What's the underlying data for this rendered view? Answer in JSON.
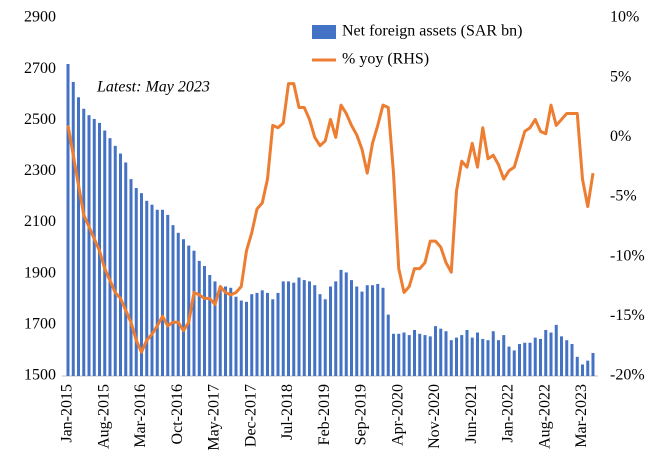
{
  "chart_data": {
    "type": "bar_line",
    "annotation": "Latest: May 2023",
    "categories": [
      "Jan-2015",
      null,
      null,
      null,
      null,
      null,
      null,
      "Aug-2015",
      null,
      null,
      null,
      null,
      null,
      null,
      "Mar-2016",
      null,
      null,
      null,
      null,
      null,
      null,
      "Oct-2016",
      null,
      null,
      null,
      null,
      null,
      null,
      "May-2017",
      null,
      null,
      null,
      null,
      null,
      null,
      "Dec-2017",
      null,
      null,
      null,
      null,
      null,
      null,
      "Jul-2018",
      null,
      null,
      null,
      null,
      null,
      null,
      "Feb-2019",
      null,
      null,
      null,
      null,
      null,
      null,
      "Sep-2019",
      null,
      null,
      null,
      null,
      null,
      null,
      "Apr-2020",
      null,
      null,
      null,
      null,
      null,
      null,
      "Nov-2020",
      null,
      null,
      null,
      null,
      null,
      null,
      "Jun-2021",
      null,
      null,
      null,
      null,
      null,
      null,
      "Jan-2022",
      null,
      null,
      null,
      null,
      null,
      null,
      "Aug-2022",
      null,
      null,
      null,
      null,
      null,
      null,
      "Mar-2023",
      null,
      null
    ],
    "series": [
      {
        "name": "Net foreign assets (SAR bn)",
        "type": "bar",
        "color": "#4472c4",
        "values": [
          2720,
          2650,
          2590,
          2545,
          2520,
          2505,
          2490,
          2460,
          2430,
          2400,
          2370,
          2335,
          2270,
          2235,
          2215,
          2185,
          2170,
          2150,
          2150,
          2130,
          2090,
          2060,
          2035,
          2010,
          1990,
          1950,
          1930,
          1895,
          1870,
          1850,
          1850,
          1845,
          1810,
          1795,
          1790,
          1820,
          1825,
          1835,
          1825,
          1800,
          1825,
          1870,
          1870,
          1865,
          1885,
          1875,
          1870,
          1855,
          1820,
          1800,
          1850,
          1870,
          1915,
          1905,
          1875,
          1850,
          1830,
          1855,
          1855,
          1860,
          1845,
          1740,
          1665,
          1665,
          1670,
          1660,
          1680,
          1665,
          1660,
          1655,
          1695,
          1685,
          1675,
          1640,
          1650,
          1660,
          1680,
          1650,
          1670,
          1645,
          1640,
          1675,
          1640,
          1660,
          1615,
          1600,
          1625,
          1630,
          1630,
          1650,
          1645,
          1680,
          1670,
          1700,
          1655,
          1640,
          1625,
          1575,
          1545,
          1560,
          1590
        ]
      },
      {
        "name": "% yoy (RHS)",
        "type": "line",
        "axis": "y2",
        "color": "#ed7d31",
        "values": [
          1,
          -1.5,
          -4,
          -6.5,
          -7.5,
          -8.5,
          -9.5,
          -11,
          -12,
          -13,
          -13.5,
          -14.5,
          -15.5,
          -17,
          -18,
          -17,
          -16.5,
          -15.8,
          -15,
          -15.8,
          -15.5,
          -15.5,
          -16.2,
          -15.5,
          -13,
          -13.2,
          -13.5,
          -13.5,
          -14,
          -12.5,
          -13,
          -13.2,
          -13,
          -12.5,
          -9.5,
          -8,
          -6,
          -5.5,
          -3.5,
          1,
          0.8,
          1.2,
          4.5,
          4.5,
          2.5,
          2.5,
          1.5,
          0,
          -0.7,
          -0.3,
          1.5,
          0,
          2.7,
          2,
          1,
          0.2,
          -1,
          -3,
          -0.5,
          1,
          2.7,
          2.5,
          -3,
          -11,
          -13,
          -12.5,
          -11,
          -11,
          -10.5,
          -8.7,
          -8.7,
          -9.2,
          -10.5,
          -11.3,
          -4.5,
          -2,
          -2.5,
          -0.5,
          -2.5,
          0.8,
          -1.8,
          -1.5,
          -2.3,
          -3.5,
          -2.8,
          -2.5,
          -1,
          0.5,
          0.8,
          1.5,
          0.5,
          0.3,
          2.7,
          1,
          1.5,
          2,
          2,
          2,
          -3.5,
          -5.8,
          -3
        ]
      }
    ],
    "ylim": [
      1500,
      2900
    ],
    "yticks": [
      1500,
      1700,
      1900,
      2100,
      2300,
      2500,
      2700,
      2900
    ],
    "y2lim": [
      -20,
      10
    ],
    "y2ticks": [
      {
        "value": -20,
        "label": "-20%"
      },
      {
        "value": -15,
        "label": "-15%"
      },
      {
        "value": -10,
        "label": "-10%"
      },
      {
        "value": -5,
        "label": "-5%"
      },
      {
        "value": 0,
        "label": "0%"
      },
      {
        "value": 5,
        "label": "5%"
      },
      {
        "value": 10,
        "label": "10%"
      }
    ],
    "grid": false
  }
}
